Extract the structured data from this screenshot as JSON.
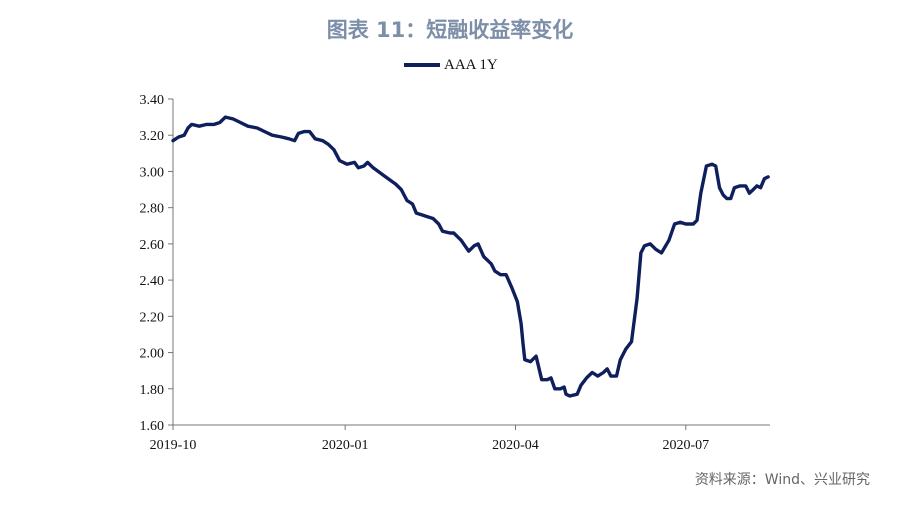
{
  "chart_data": {
    "type": "line",
    "title": "图表 11：短融收益率变化",
    "xlabel": "",
    "ylabel": "",
    "ylim": [
      1.6,
      3.4
    ],
    "yticks": [
      "3.40",
      "3.20",
      "3.00",
      "2.80",
      "2.60",
      "2.40",
      "2.20",
      "2.00",
      "1.80",
      "1.60"
    ],
    "xticks": [
      "2019-10",
      "2020-01",
      "2020-04",
      "2020-07"
    ],
    "xlim": [
      "2019-10-01",
      "2020-08-15"
    ],
    "legend": "top-center",
    "grid": false,
    "series": [
      {
        "name": "AAA 1Y",
        "color": "#0f1f5c",
        "points": [
          [
            "2019-10-01",
            3.17
          ],
          [
            "2019-10-04",
            3.19
          ],
          [
            "2019-10-07",
            3.2
          ],
          [
            "2019-10-09",
            3.24
          ],
          [
            "2019-10-11",
            3.26
          ],
          [
            "2019-10-15",
            3.25
          ],
          [
            "2019-10-19",
            3.26
          ],
          [
            "2019-10-23",
            3.26
          ],
          [
            "2019-10-26",
            3.27
          ],
          [
            "2019-10-29",
            3.3
          ],
          [
            "2019-11-02",
            3.29
          ],
          [
            "2019-11-06",
            3.27
          ],
          [
            "2019-11-10",
            3.25
          ],
          [
            "2019-11-15",
            3.24
          ],
          [
            "2019-11-19",
            3.22
          ],
          [
            "2019-11-23",
            3.2
          ],
          [
            "2019-11-28",
            3.19
          ],
          [
            "2019-12-02",
            3.18
          ],
          [
            "2019-12-05",
            3.17
          ],
          [
            "2019-12-07",
            3.21
          ],
          [
            "2019-12-10",
            3.22
          ],
          [
            "2019-12-13",
            3.22
          ],
          [
            "2019-12-16",
            3.18
          ],
          [
            "2019-12-20",
            3.17
          ],
          [
            "2019-12-23",
            3.15
          ],
          [
            "2019-12-26",
            3.12
          ],
          [
            "2019-12-29",
            3.06
          ],
          [
            "2020-01-02",
            3.04
          ],
          [
            "2020-01-06",
            3.05
          ],
          [
            "2020-01-08",
            3.02
          ],
          [
            "2020-01-11",
            3.03
          ],
          [
            "2020-01-13",
            3.05
          ],
          [
            "2020-01-16",
            3.02
          ],
          [
            "2020-01-20",
            2.99
          ],
          [
            "2020-01-24",
            2.96
          ],
          [
            "2020-01-28",
            2.93
          ],
          [
            "2020-01-31",
            2.9
          ],
          [
            "2020-02-03",
            2.84
          ],
          [
            "2020-02-06",
            2.82
          ],
          [
            "2020-02-08",
            2.77
          ],
          [
            "2020-02-11",
            2.76
          ],
          [
            "2020-02-14",
            2.75
          ],
          [
            "2020-02-17",
            2.74
          ],
          [
            "2020-02-20",
            2.71
          ],
          [
            "2020-02-22",
            2.67
          ],
          [
            "2020-02-26",
            2.66
          ],
          [
            "2020-02-28",
            2.66
          ],
          [
            "2020-03-03",
            2.62
          ],
          [
            "2020-03-05",
            2.59
          ],
          [
            "2020-03-07",
            2.56
          ],
          [
            "2020-03-10",
            2.59
          ],
          [
            "2020-03-12",
            2.6
          ],
          [
            "2020-03-15",
            2.53
          ],
          [
            "2020-03-19",
            2.49
          ],
          [
            "2020-03-21",
            2.45
          ],
          [
            "2020-03-24",
            2.43
          ],
          [
            "2020-03-27",
            2.43
          ],
          [
            "2020-03-30",
            2.36
          ],
          [
            "2020-04-02",
            2.28
          ],
          [
            "2020-04-04",
            2.16
          ],
          [
            "2020-04-05",
            2.05
          ],
          [
            "2020-04-06",
            1.96
          ],
          [
            "2020-04-09",
            1.95
          ],
          [
            "2020-04-12",
            1.98
          ],
          [
            "2020-04-15",
            1.85
          ],
          [
            "2020-04-18",
            1.85
          ],
          [
            "2020-04-20",
            1.86
          ],
          [
            "2020-04-22",
            1.8
          ],
          [
            "2020-04-25",
            1.8
          ],
          [
            "2020-04-27",
            1.81
          ],
          [
            "2020-04-28",
            1.77
          ],
          [
            "2020-04-30",
            1.76
          ],
          [
            "2020-05-04",
            1.77
          ],
          [
            "2020-05-06",
            1.82
          ],
          [
            "2020-05-09",
            1.86
          ],
          [
            "2020-05-12",
            1.89
          ],
          [
            "2020-05-15",
            1.87
          ],
          [
            "2020-05-18",
            1.89
          ],
          [
            "2020-05-20",
            1.91
          ],
          [
            "2020-05-22",
            1.87
          ],
          [
            "2020-05-25",
            1.87
          ],
          [
            "2020-05-27",
            1.96
          ],
          [
            "2020-05-30",
            2.02
          ],
          [
            "2020-06-02",
            2.06
          ],
          [
            "2020-06-05",
            2.3
          ],
          [
            "2020-06-07",
            2.55
          ],
          [
            "2020-06-09",
            2.59
          ],
          [
            "2020-06-12",
            2.6
          ],
          [
            "2020-06-15",
            2.57
          ],
          [
            "2020-06-18",
            2.55
          ],
          [
            "2020-06-22",
            2.62
          ],
          [
            "2020-06-25",
            2.71
          ],
          [
            "2020-06-28",
            2.72
          ],
          [
            "2020-07-01",
            2.71
          ],
          [
            "2020-07-05",
            2.71
          ],
          [
            "2020-07-07",
            2.73
          ],
          [
            "2020-07-09",
            2.88
          ],
          [
            "2020-07-12",
            3.03
          ],
          [
            "2020-07-15",
            3.04
          ],
          [
            "2020-07-17",
            3.03
          ],
          [
            "2020-07-19",
            2.91
          ],
          [
            "2020-07-21",
            2.87
          ],
          [
            "2020-07-23",
            2.85
          ],
          [
            "2020-07-25",
            2.85
          ],
          [
            "2020-07-27",
            2.91
          ],
          [
            "2020-07-30",
            2.92
          ],
          [
            "2020-08-02",
            2.92
          ],
          [
            "2020-08-04",
            2.88
          ],
          [
            "2020-08-06",
            2.9
          ],
          [
            "2020-08-08",
            2.92
          ],
          [
            "2020-08-10",
            2.91
          ],
          [
            "2020-08-12",
            2.96
          ],
          [
            "2020-08-14",
            2.97
          ]
        ]
      }
    ]
  },
  "source": "资料来源：Wind、兴业研究"
}
